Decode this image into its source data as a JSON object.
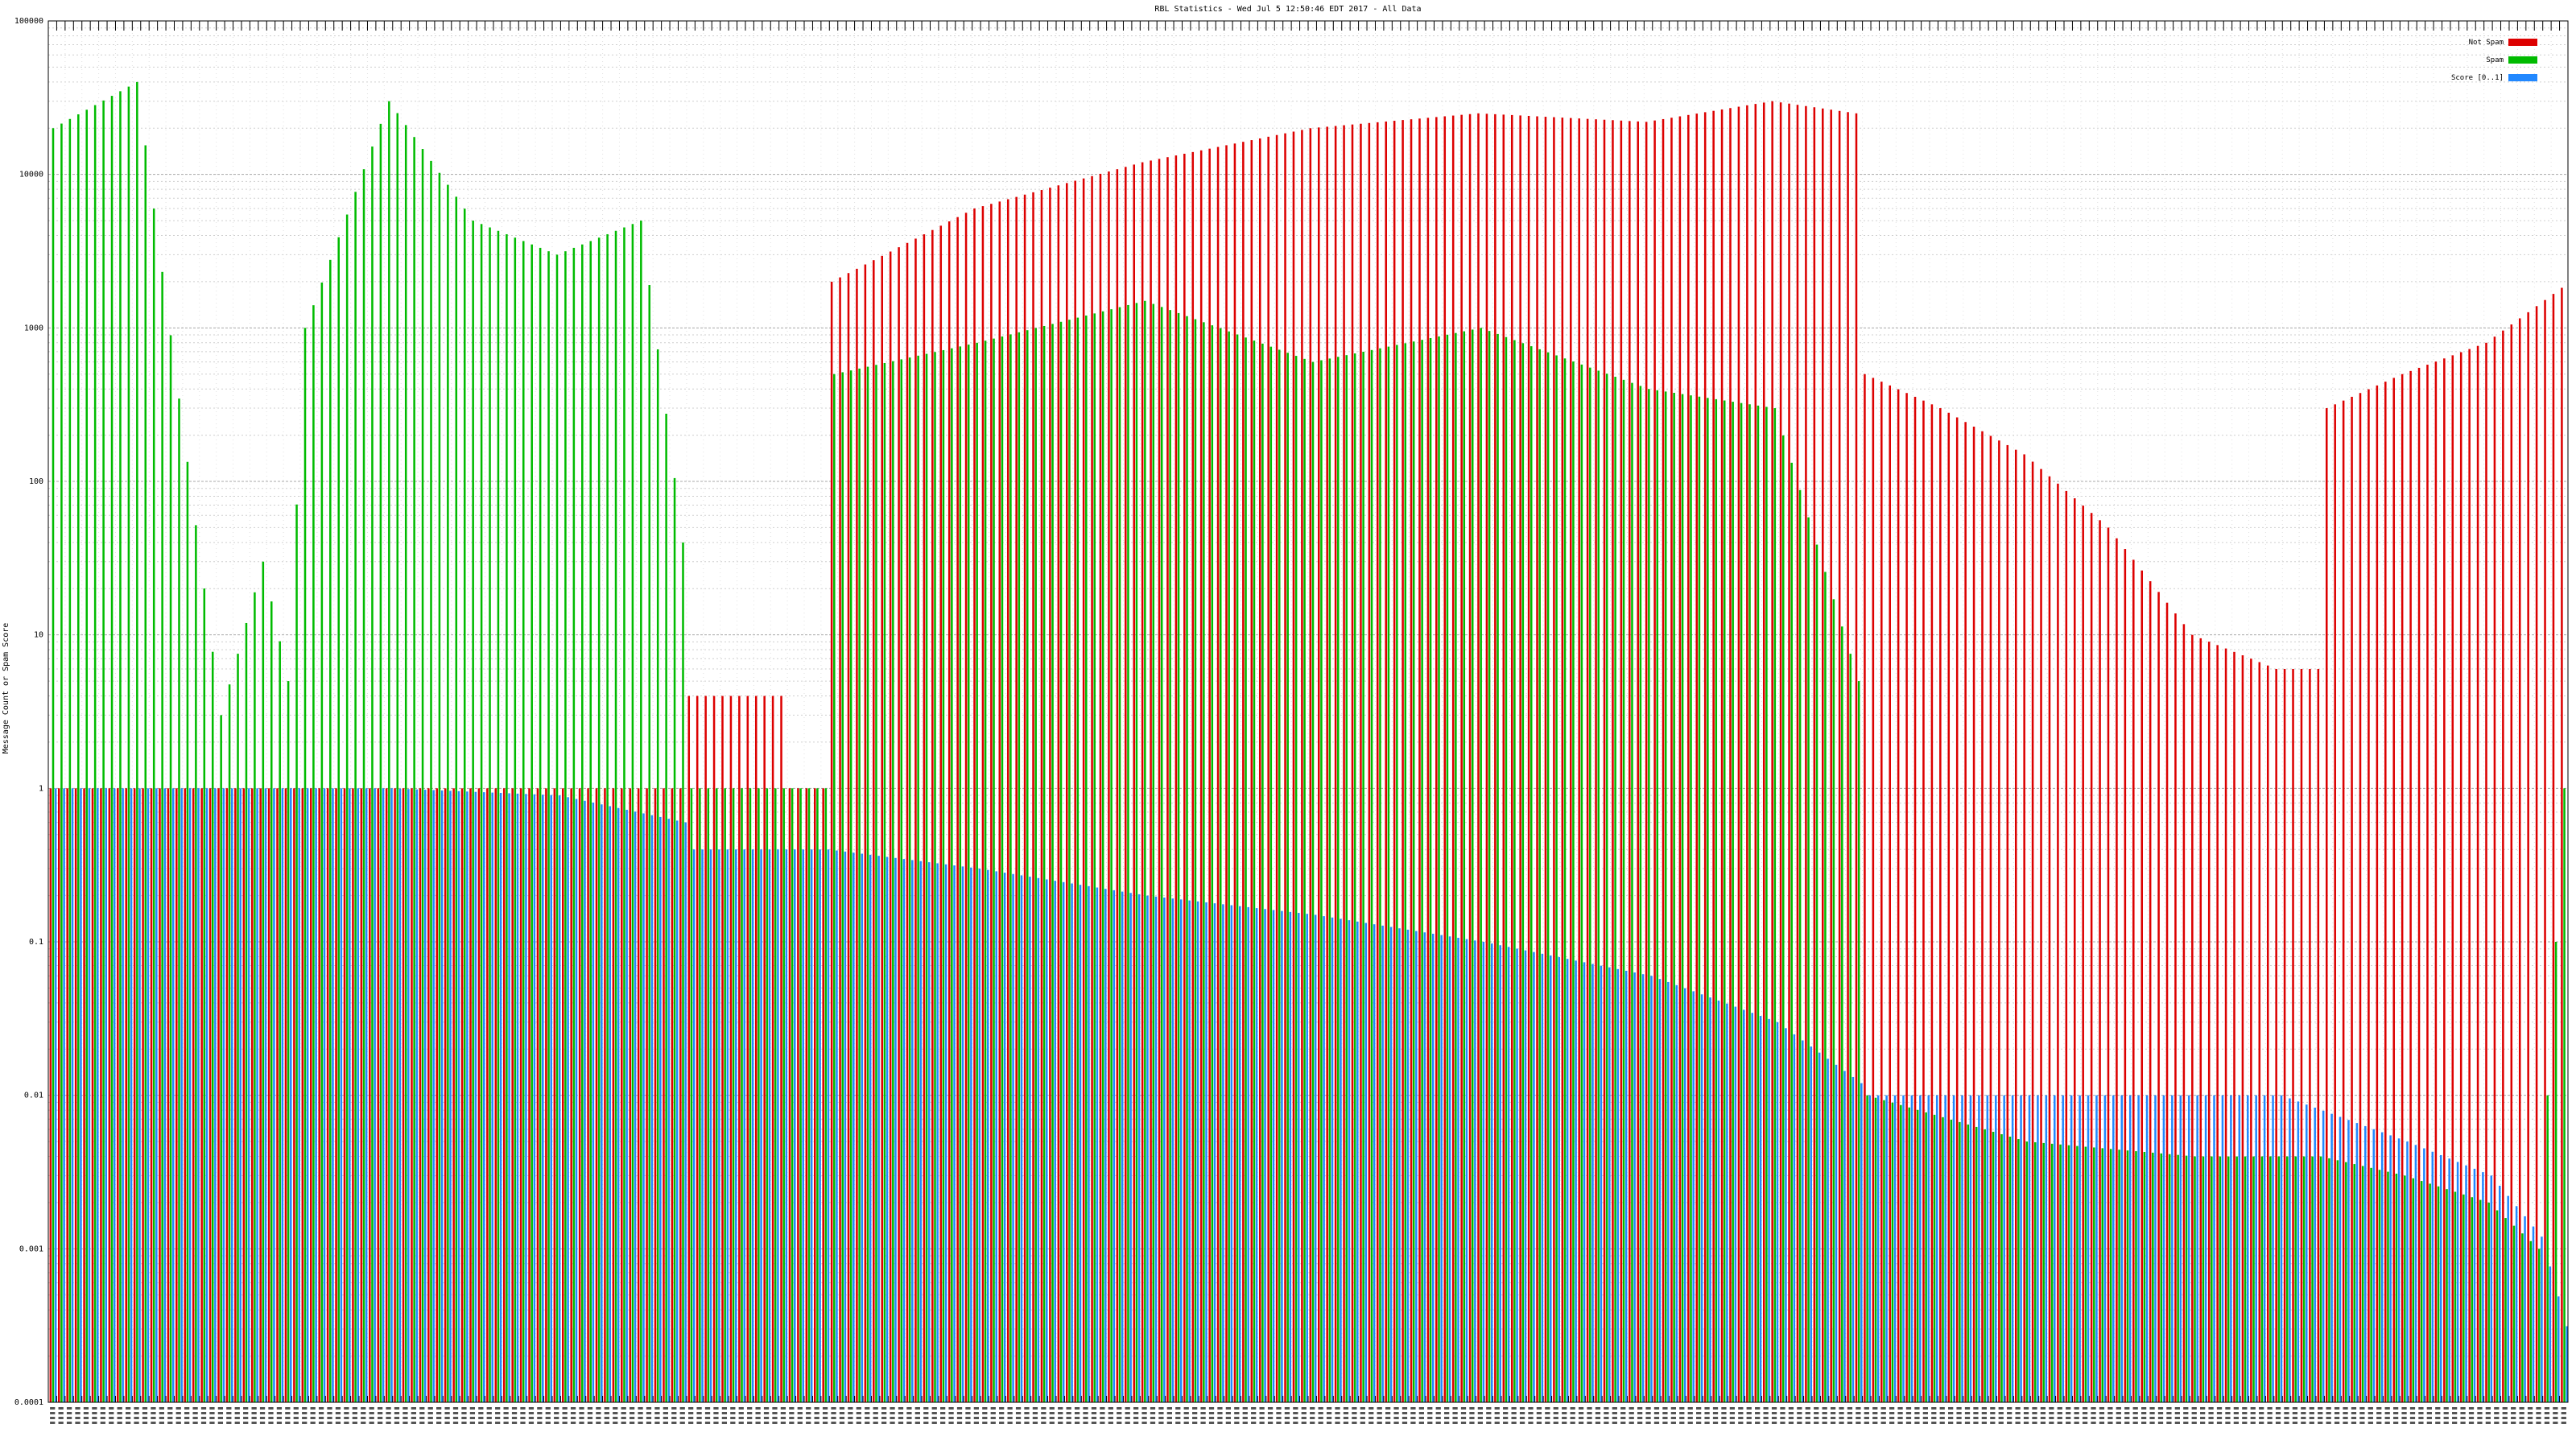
{
  "chart_data": {
    "type": "bar",
    "title": "RBL Statistics - Wed Jul  5 12:50:46 EDT 2017 - All Data",
    "ylabel": "Message Count or Spam Score",
    "xlabel": "",
    "yscale": "log",
    "ylim": [
      0.0001,
      100000
    ],
    "y_ticks": [
      "0.0001",
      "0.001",
      "0.01",
      "0.1",
      "1",
      "10",
      "100",
      "1000",
      "10000",
      "100000"
    ],
    "grid": true,
    "legend_position": "top-right",
    "category_count": 300,
    "x_tick_labels_legible": false,
    "series": [
      {
        "name": "Not Spam",
        "color": "#dd0000",
        "anchors": [
          [
            0,
            1
          ],
          [
            75,
            1
          ],
          [
            76,
            4
          ],
          [
            87,
            4
          ],
          [
            88,
            1
          ],
          [
            92,
            1
          ],
          [
            93,
            2000
          ],
          [
            110,
            6000
          ],
          [
            130,
            12000
          ],
          [
            150,
            20000
          ],
          [
            170,
            25000
          ],
          [
            190,
            22000
          ],
          [
            205,
            30000
          ],
          [
            215,
            25000
          ],
          [
            216,
            500
          ],
          [
            225,
            300
          ],
          [
            235,
            150
          ],
          [
            245,
            50
          ],
          [
            255,
            10
          ],
          [
            265,
            6
          ],
          [
            270,
            6
          ],
          [
            271,
            300
          ],
          [
            280,
            500
          ],
          [
            290,
            800
          ],
          [
            300,
            2000
          ]
        ]
      },
      {
        "name": "Spam",
        "color": "#00bb00",
        "anchors": [
          [
            0,
            20000
          ],
          [
            10,
            40000
          ],
          [
            20,
            3
          ],
          [
            25,
            30
          ],
          [
            28,
            5
          ],
          [
            30,
            1000
          ],
          [
            40,
            30000
          ],
          [
            50,
            5000
          ],
          [
            60,
            3000
          ],
          [
            70,
            5000
          ],
          [
            75,
            40
          ],
          [
            76,
            1
          ],
          [
            92,
            1
          ],
          [
            93,
            500
          ],
          [
            110,
            800
          ],
          [
            130,
            1500
          ],
          [
            150,
            600
          ],
          [
            170,
            1000
          ],
          [
            190,
            400
          ],
          [
            205,
            300
          ],
          [
            215,
            5
          ],
          [
            216,
            0.01
          ],
          [
            235,
            0.005
          ],
          [
            255,
            0.004
          ],
          [
            270,
            0.004
          ],
          [
            280,
            0.003
          ],
          [
            290,
            0.002
          ],
          [
            296,
            0.001
          ],
          [
            300,
            10
          ]
        ]
      },
      {
        "name": "Score [0..1]",
        "color": "#2288ff",
        "anchors": [
          [
            0,
            1
          ],
          [
            40,
            1
          ],
          [
            60,
            0.9
          ],
          [
            75,
            0.6
          ],
          [
            76,
            0.4
          ],
          [
            92,
            0.4
          ],
          [
            110,
            0.3
          ],
          [
            130,
            0.2
          ],
          [
            150,
            0.15
          ],
          [
            170,
            0.1
          ],
          [
            190,
            0.06
          ],
          [
            205,
            0.03
          ],
          [
            215,
            0.012
          ],
          [
            216,
            0.01
          ],
          [
            265,
            0.01
          ],
          [
            280,
            0.005
          ],
          [
            290,
            0.003
          ],
          [
            296,
            0.0012
          ],
          [
            300,
            0.0002
          ]
        ]
      }
    ]
  }
}
